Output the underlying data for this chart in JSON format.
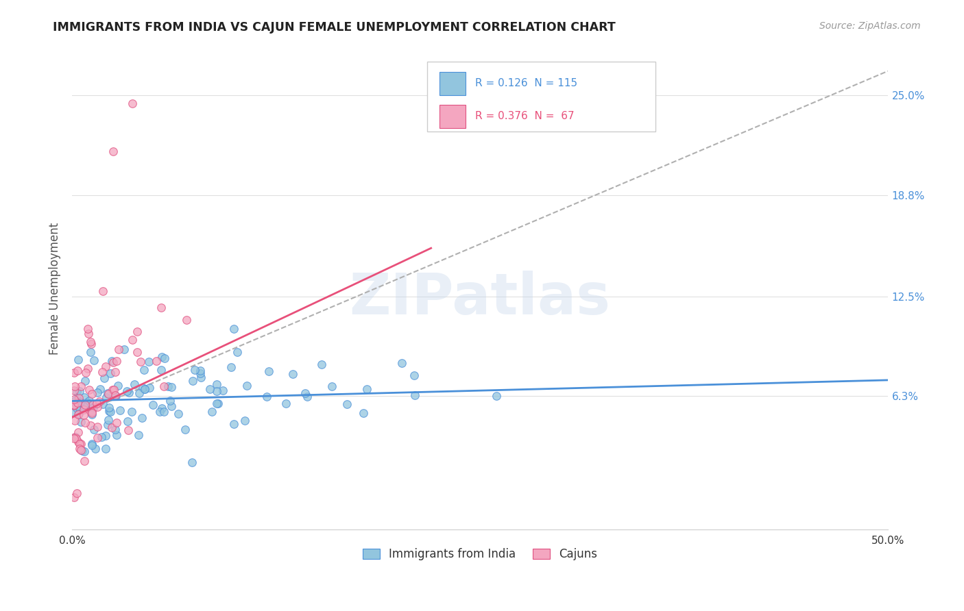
{
  "title": "IMMIGRANTS FROM INDIA VS CAJUN FEMALE UNEMPLOYMENT CORRELATION CHART",
  "source": "Source: ZipAtlas.com",
  "ylabel": "Female Unemployment",
  "yticks": [
    "25.0%",
    "18.8%",
    "12.5%",
    "6.3%"
  ],
  "ytick_vals": [
    0.25,
    0.188,
    0.125,
    0.063
  ],
  "xlim": [
    0.0,
    0.5
  ],
  "ylim": [
    -0.02,
    0.28
  ],
  "watermark": "ZIPatlas",
  "blue_color": "#92c5de",
  "blue_edge_color": "#4a90d9",
  "pink_color": "#f4a6c0",
  "pink_edge_color": "#e05080",
  "dashed_line_color": "#b0b0b0",
  "blue_line_color": "#4a90d9",
  "pink_line_color": "#e8507a",
  "blue_N": 115,
  "pink_N": 67,
  "blue_R": 0.126,
  "pink_R": 0.376,
  "legend_blue_text": "R = 0.126  N = 115",
  "legend_pink_text": "R = 0.376  N =  67",
  "legend_blue_color": "#4a90d9",
  "legend_pink_color": "#e8507a",
  "blue_line_x": [
    0.0,
    0.5
  ],
  "blue_line_y": [
    0.06,
    0.073
  ],
  "pink_line_x": [
    0.0,
    0.22
  ],
  "pink_line_y": [
    0.05,
    0.155
  ],
  "dash_line_x": [
    0.0,
    0.5
  ],
  "dash_line_y": [
    0.05,
    0.265
  ]
}
